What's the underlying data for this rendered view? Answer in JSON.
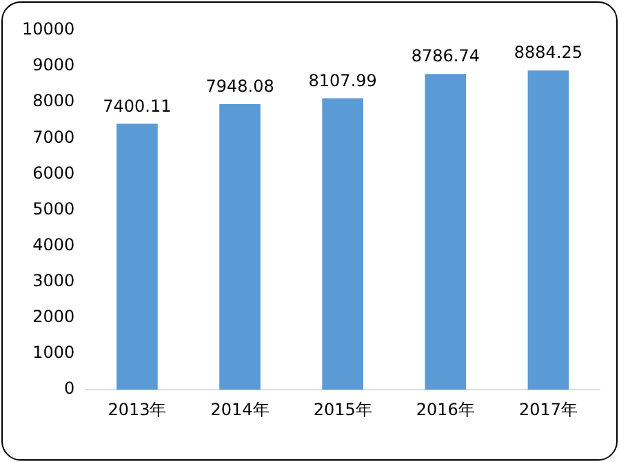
{
  "chart_data": {
    "type": "bar",
    "categories": [
      "2013年",
      "2014年",
      "2015年",
      "2016年",
      "2017年"
    ],
    "values": [
      7400.11,
      7948.08,
      8107.99,
      8786.74,
      8884.25
    ],
    "color": "#5b9bd5",
    "ylim": [
      0,
      10000
    ],
    "yticks": [
      0,
      1000,
      2000,
      3000,
      4000,
      5000,
      6000,
      7000,
      8000,
      9000,
      10000
    ],
    "grid": false,
    "legend": false,
    "data_labels": true
  }
}
